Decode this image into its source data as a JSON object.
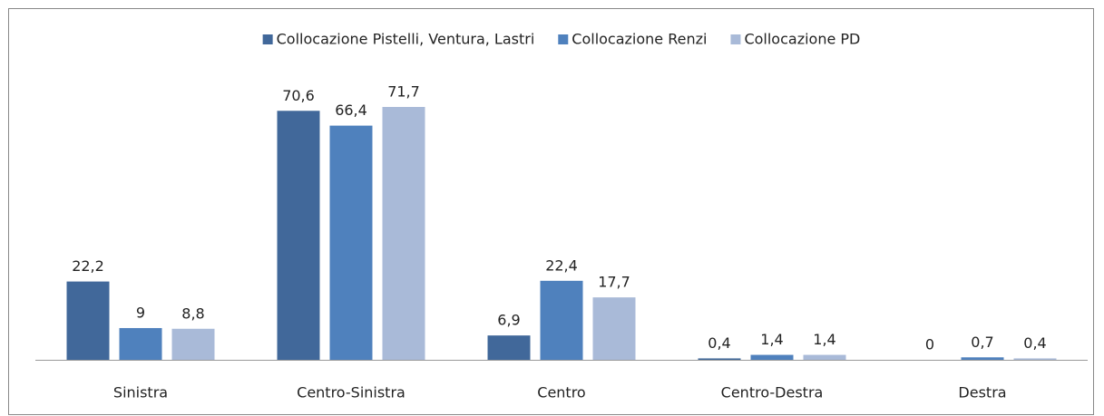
{
  "chart_data": {
    "type": "bar",
    "categories": [
      "Sinistra",
      "Centro-Sinistra",
      "Centro",
      "Centro-Destra",
      "Destra"
    ],
    "series": [
      {
        "name": "Collocazione Pistelli, Ventura, Lastri",
        "color": "#41689a",
        "values": [
          22.2,
          70.6,
          6.9,
          0.4,
          0
        ],
        "value_labels": [
          "22,2",
          "70,6",
          "6,9",
          "0,4",
          "0"
        ]
      },
      {
        "name": "Collocazione Renzi",
        "color": "#4f81bd",
        "values": [
          9,
          66.4,
          22.4,
          1.4,
          0.7
        ],
        "value_labels": [
          "9",
          "66,4",
          "22,4",
          "1,4",
          "0,7"
        ]
      },
      {
        "name": "Collocazione PD",
        "color": "#a9bad8",
        "values": [
          8.8,
          71.7,
          17.7,
          1.4,
          0.4
        ],
        "value_labels": [
          "8,8",
          "71,7",
          "17,7",
          "1,4",
          "0,4"
        ]
      }
    ],
    "legend": "top"
  }
}
